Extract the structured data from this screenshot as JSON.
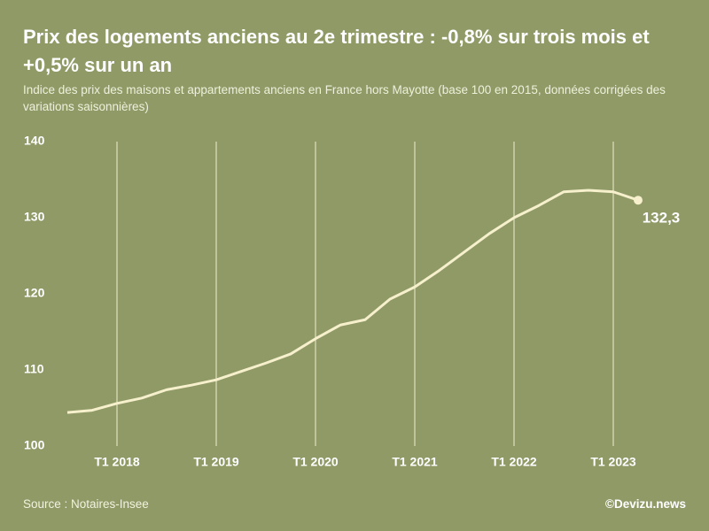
{
  "title": "Prix des logements anciens au 2e trimestre : -0,8% sur trois mois et +0,5% sur un an",
  "subtitle": "Indice des prix des maisons et appartements anciens en France hors Mayotte (base 100 en 2015, données corrigées des variations saisonnières)",
  "source": "Source : Notaires-Insee",
  "credit": "©Devizu.news",
  "chart_data": {
    "type": "line",
    "categories": [
      null,
      null,
      "T1 2018",
      null,
      null,
      null,
      "T1 2019",
      null,
      null,
      null,
      "T1 2020",
      null,
      null,
      null,
      "T1 2021",
      null,
      null,
      null,
      "T1 2022",
      null,
      null,
      null,
      "T1 2023",
      null
    ],
    "series": [
      {
        "name": "Indice",
        "color": "#f6f0cc",
        "values": [
          104.4,
          104.7,
          105.6,
          106.3,
          107.4,
          108.0,
          108.7,
          109.8,
          110.9,
          112.1,
          114.1,
          115.9,
          116.6,
          119.3,
          120.9,
          123.1,
          125.5,
          127.9,
          130.0,
          131.6,
          133.4,
          133.6,
          133.4,
          132.3
        ],
        "value_labels": [
          null,
          null,
          null,
          null,
          null,
          null,
          null,
          null,
          null,
          null,
          null,
          null,
          null,
          null,
          null,
          null,
          null,
          null,
          null,
          null,
          null,
          null,
          null,
          "132,3"
        ]
      }
    ],
    "ylim": [
      100,
      140
    ],
    "yticks": [
      100,
      110,
      120,
      130,
      140
    ],
    "xgrid": true
  }
}
